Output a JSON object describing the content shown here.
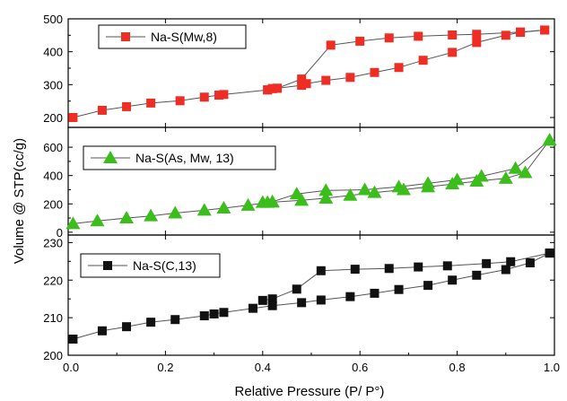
{
  "chart_data": {
    "type": "line",
    "xlabel": "Relative Pressure (P/ P°)",
    "ylabel": "Volume @ STP(cc/g)",
    "xlim": [
      0.0,
      1.0
    ],
    "xticks": [
      0.0,
      0.2,
      0.4,
      0.6,
      0.8,
      1.0
    ],
    "xtick_labels": [
      "0.0",
      "0.2",
      "0.4",
      "0.6",
      "0.8",
      "1.0"
    ],
    "grid": false,
    "legend_position": "top-left",
    "panels": [
      {
        "series_name": "Na-S(Mw,8)",
        "marker": "square",
        "color": "#ee2e24",
        "ylim": [
          170,
          500
        ],
        "yticks": [
          200,
          300,
          400,
          500
        ],
        "ytick_labels": [
          "200",
          "300",
          "400",
          "500"
        ],
        "adsorption": {
          "x": [
            0.01,
            0.07,
            0.12,
            0.17,
            0.23,
            0.28,
            0.31,
            0.32,
            0.41,
            0.42,
            0.43,
            0.48,
            0.49,
            0.53,
            0.58,
            0.63,
            0.68,
            0.73,
            0.79,
            0.84,
            0.9,
            0.93,
            0.98
          ],
          "y": [
            200,
            222,
            233,
            244,
            251,
            262,
            268,
            270,
            284,
            288,
            289,
            298,
            303,
            313,
            322,
            337,
            352,
            374,
            398,
            428,
            450,
            459,
            466
          ]
        },
        "desorption": {
          "x": [
            0.98,
            0.93,
            0.84,
            0.79,
            0.72,
            0.66,
            0.6,
            0.54,
            0.48,
            0.43,
            0.42,
            0.41
          ],
          "y": [
            466,
            460,
            453,
            451,
            447,
            442,
            432,
            420,
            317,
            289,
            288,
            284
          ]
        }
      },
      {
        "series_name": "Na-S(As, Mw, 13)",
        "marker": "triangle",
        "color": "#3bbd1c",
        "ylim": [
          -20,
          740
        ],
        "yticks": [
          0,
          200,
          400,
          600
        ],
        "ytick_labels": [
          "0",
          "200",
          "400",
          "600"
        ],
        "adsorption": {
          "x": [
            0.01,
            0.06,
            0.12,
            0.17,
            0.22,
            0.28,
            0.32,
            0.37,
            0.41,
            0.42,
            0.48,
            0.53,
            0.58,
            0.63,
            0.69,
            0.74,
            0.79,
            0.84,
            0.9,
            0.94,
            0.99
          ],
          "y": [
            60,
            80,
            100,
            115,
            135,
            155,
            170,
            190,
            210,
            212,
            225,
            240,
            260,
            280,
            300,
            320,
            340,
            360,
            380,
            420,
            650
          ]
        },
        "desorption": {
          "x": [
            0.99,
            0.92,
            0.85,
            0.8,
            0.74,
            0.68,
            0.61,
            0.53,
            0.47,
            0.42,
            0.4
          ],
          "y": [
            650,
            450,
            395,
            370,
            345,
            320,
            300,
            295,
            270,
            215,
            210
          ]
        }
      },
      {
        "series_name": "Na-S(C,13)",
        "marker": "square",
        "color": "#111111",
        "ylim": [
          200,
          232
        ],
        "yticks": [
          200,
          210,
          220,
          230
        ],
        "ytick_labels": [
          "200",
          "210",
          "220",
          "230"
        ],
        "adsorption": {
          "x": [
            0.01,
            0.07,
            0.12,
            0.17,
            0.22,
            0.28,
            0.3,
            0.32,
            0.38,
            0.42,
            0.48,
            0.52,
            0.58,
            0.63,
            0.68,
            0.74,
            0.79,
            0.84,
            0.9,
            0.95,
            0.99
          ],
          "y": [
            204.3,
            206.5,
            207.6,
            208.8,
            209.5,
            210.5,
            211,
            211.4,
            212.5,
            213.2,
            214,
            214.7,
            215.6,
            216.5,
            217.5,
            218.6,
            220,
            221.3,
            222.8,
            224.6,
            227.2
          ]
        },
        "desorption": {
          "x": [
            0.99,
            0.91,
            0.86,
            0.78,
            0.72,
            0.66,
            0.59,
            0.52,
            0.47,
            0.42,
            0.4
          ],
          "y": [
            227.2,
            224.9,
            224.4,
            223.8,
            223.5,
            223.1,
            222.9,
            222.5,
            217.6,
            215,
            214.6
          ]
        }
      }
    ]
  }
}
